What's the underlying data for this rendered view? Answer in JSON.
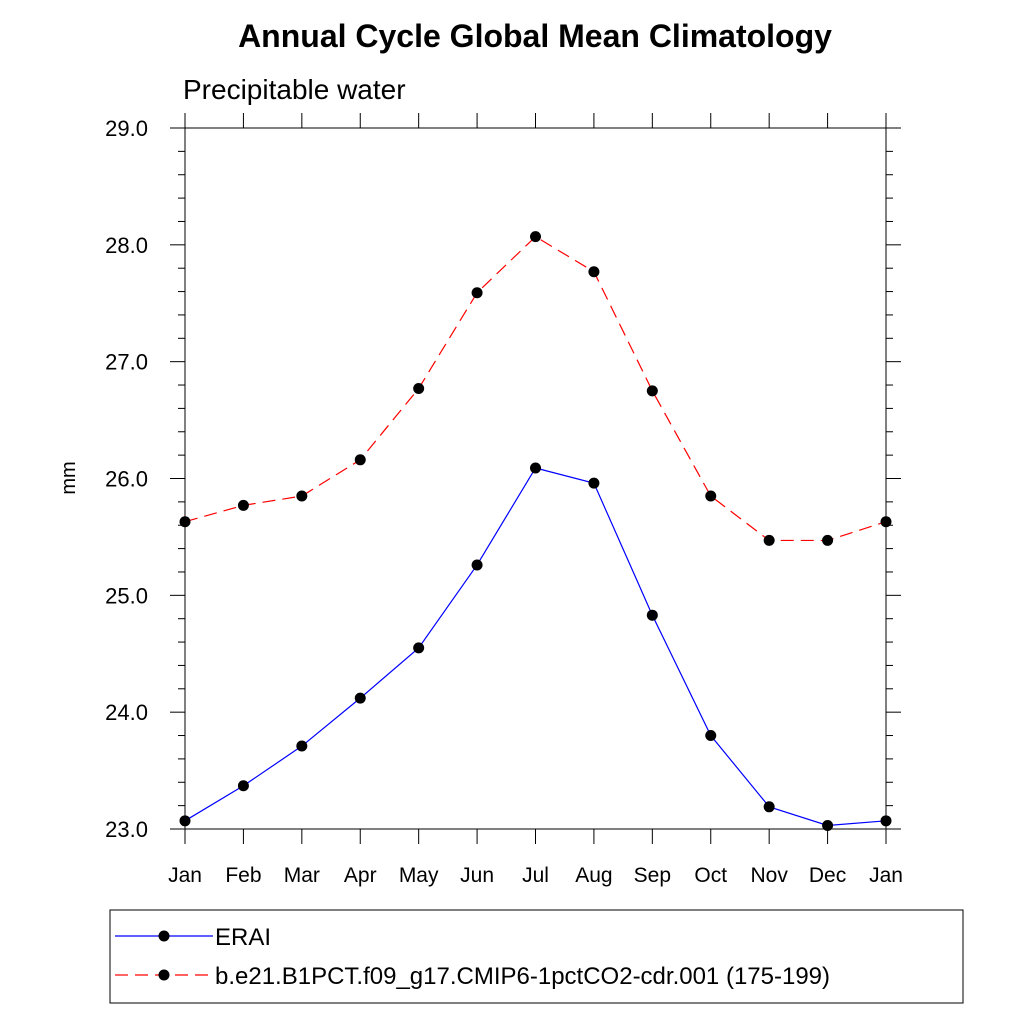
{
  "chart_data": {
    "type": "line",
    "title": "Annual Cycle Global Mean Climatology",
    "subtitle": "Precipitable water",
    "xlabel": "",
    "ylabel": "mm",
    "categories": [
      "Jan",
      "Feb",
      "Mar",
      "Apr",
      "May",
      "Jun",
      "Jul",
      "Aug",
      "Sep",
      "Oct",
      "Nov",
      "Dec",
      "Jan"
    ],
    "ylim": [
      23.0,
      29.0
    ],
    "yticks": [
      "23.0",
      "24.0",
      "25.0",
      "26.0",
      "27.0",
      "28.0",
      "29.0"
    ],
    "grid": false,
    "legend_position": "bottom",
    "series": [
      {
        "name": "ERAI",
        "color": "#0000ff",
        "dash": "solid",
        "marker": "filled-circle",
        "values": [
          23.07,
          23.37,
          23.71,
          24.12,
          24.55,
          25.26,
          26.09,
          25.96,
          24.83,
          23.8,
          23.19,
          23.03,
          23.07
        ]
      },
      {
        "name": "b.e21.B1PCT.f09_g17.CMIP6-1pctCO2-cdr.001 (175-199)",
        "color": "#ff0000",
        "dash": "dashed",
        "marker": "filled-circle",
        "values": [
          25.63,
          25.77,
          25.85,
          26.16,
          26.77,
          27.59,
          28.07,
          27.77,
          26.75,
          25.85,
          25.47,
          25.47,
          25.63
        ]
      }
    ]
  }
}
